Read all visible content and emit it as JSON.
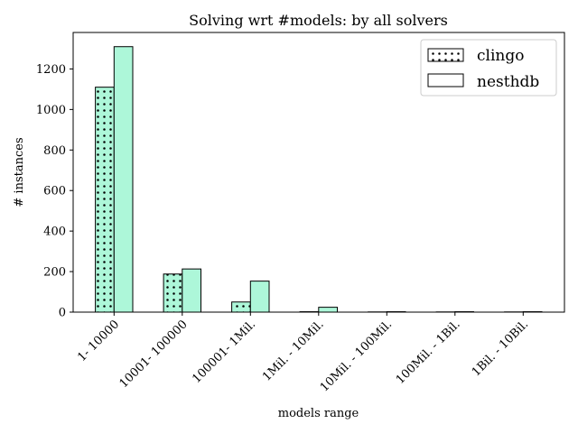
{
  "chart_data": {
    "type": "bar",
    "title": "Solving wrt #models: by all solvers",
    "xlabel": "models range",
    "ylabel": "# instances",
    "categories": [
      "1- 10000",
      "10001- 100000",
      "100001- 1Mil.",
      "1Mil. - 10Mil.",
      "10Mil. - 100Mil.",
      "100Mil. - 1Bil.",
      "1Bil. - 10Bil."
    ],
    "series": [
      {
        "name": "clingo",
        "values": [
          1110,
          188,
          50,
          2,
          1,
          1,
          1
        ],
        "hatch": "dots"
      },
      {
        "name": "nesthdb",
        "values": [
          1310,
          213,
          153,
          24,
          2,
          2,
          2
        ],
        "hatch": "none"
      }
    ],
    "ylim": [
      0,
      1380
    ],
    "yticks": [
      0,
      200,
      400,
      600,
      800,
      1000,
      1200
    ],
    "grid": false,
    "legend_position": "top-right",
    "bar_color": "#adf7d9",
    "edge_color": "#000000"
  }
}
